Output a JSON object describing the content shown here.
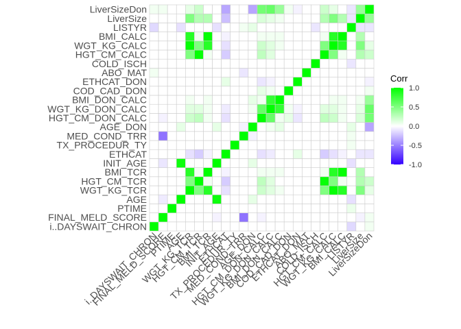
{
  "chart_data": {
    "type": "heatmap",
    "variables": [
      "i..DAYSWAIT_CHRON",
      "FINAL_MELD_SCORE",
      "PTIME",
      "AGE",
      "WGT_KG_TCR",
      "HGT_CM_TCR",
      "BMI_TCR",
      "INIT_AGE",
      "ETHCAT",
      "TX_PROCEDUR_TY",
      "MED_COND_TRR",
      "AGE_DON",
      "HGT_CM_DON_CALC",
      "WGT_KG_DON_CALC",
      "BMI_DON_CALC",
      "COD_CAD_DON",
      "ETHCAT_DON",
      "ABO_MAT",
      "COLD_ISCH",
      "HGT_CM_CALC",
      "WGT_KG_CALC",
      "BMI_CALC",
      "LISTYR",
      "LiverSize",
      "LiverSizeDon"
    ],
    "values": [
      [
        1.0,
        0.0,
        0.0,
        0.0,
        0.0,
        0.0,
        0.0,
        0.0,
        0.0,
        0.0,
        0.0,
        0.0,
        0.0,
        0.0,
        0.0,
        0.0,
        0.0,
        0.0,
        0.0,
        0.0,
        0.0,
        0.0,
        -0.15,
        0.0,
        0.05
      ],
      [
        0.0,
        1.0,
        0.0,
        0.0,
        0.0,
        0.0,
        0.0,
        -0.05,
        0.0,
        0.0,
        -0.55,
        0.0,
        -0.05,
        0.0,
        0.0,
        0.0,
        0.0,
        0.0,
        0.0,
        0.0,
        0.0,
        0.0,
        0.0,
        -0.05,
        0.05
      ],
      [
        0.0,
        0.0,
        1.0,
        0.0,
        0.0,
        0.0,
        0.0,
        0.0,
        0.0,
        0.0,
        0.0,
        0.0,
        0.0,
        0.0,
        0.0,
        0.0,
        0.0,
        0.0,
        0.0,
        0.0,
        0.0,
        0.0,
        0.08,
        0.0,
        0.0
      ],
      [
        0.0,
        -0.08,
        0.0,
        1.0,
        0.0,
        0.0,
        0.0,
        0.95,
        0.0,
        0.0,
        0.0,
        0.1,
        0.0,
        0.0,
        0.0,
        0.0,
        0.0,
        0.0,
        0.0,
        0.0,
        0.0,
        0.0,
        -0.12,
        0.0,
        0.0
      ],
      [
        0.0,
        0.0,
        0.0,
        0.0,
        1.0,
        0.5,
        0.85,
        0.0,
        -0.12,
        0.0,
        0.0,
        0.0,
        0.2,
        0.12,
        0.05,
        0.0,
        0.0,
        0.0,
        0.0,
        0.5,
        0.98,
        0.85,
        0.0,
        0.5,
        0.1
      ],
      [
        0.0,
        0.0,
        0.0,
        0.0,
        0.5,
        1.0,
        0.05,
        0.0,
        -0.2,
        0.0,
        0.0,
        0.0,
        0.25,
        0.12,
        0.0,
        0.0,
        0.0,
        0.0,
        0.0,
        0.98,
        0.5,
        0.05,
        0.0,
        0.3,
        0.2
      ],
      [
        0.0,
        0.0,
        0.0,
        0.0,
        0.85,
        0.05,
        1.0,
        0.0,
        -0.05,
        0.0,
        0.0,
        0.0,
        0.05,
        0.05,
        0.05,
        0.0,
        0.0,
        0.0,
        0.0,
        0.05,
        0.85,
        0.98,
        0.0,
        0.3,
        0.0
      ],
      [
        0.0,
        -0.1,
        0.0,
        0.95,
        0.0,
        0.0,
        0.0,
        1.0,
        0.0,
        0.0,
        0.0,
        0.1,
        0.0,
        0.0,
        0.0,
        0.0,
        0.0,
        0.0,
        0.0,
        0.0,
        0.0,
        0.0,
        -0.12,
        0.0,
        0.0
      ],
      [
        0.0,
        0.0,
        0.0,
        0.0,
        -0.12,
        -0.2,
        -0.05,
        0.0,
        1.0,
        0.0,
        0.0,
        0.0,
        -0.12,
        -0.08,
        0.0,
        0.0,
        0.1,
        0.0,
        0.0,
        -0.2,
        -0.12,
        -0.05,
        0.0,
        -0.1,
        -0.1
      ],
      [
        0.0,
        0.0,
        0.0,
        0.0,
        0.0,
        0.0,
        0.0,
        0.0,
        0.0,
        1.0,
        0.0,
        0.0,
        0.0,
        0.0,
        0.0,
        0.0,
        0.0,
        0.0,
        0.0,
        0.0,
        0.0,
        0.0,
        0.05,
        0.0,
        0.0
      ],
      [
        0.0,
        -0.55,
        0.0,
        0.0,
        0.0,
        0.0,
        0.0,
        0.0,
        0.0,
        0.0,
        1.0,
        -0.05,
        0.0,
        0.0,
        0.0,
        0.0,
        0.0,
        0.0,
        0.0,
        0.0,
        0.0,
        0.0,
        0.05,
        0.0,
        0.0
      ],
      [
        0.0,
        0.0,
        0.0,
        0.1,
        0.0,
        0.0,
        0.0,
        0.1,
        0.0,
        0.0,
        -0.05,
        1.0,
        0.0,
        0.05,
        0.1,
        0.0,
        0.0,
        0.0,
        0.0,
        0.0,
        0.0,
        0.0,
        0.1,
        0.0,
        -0.35
      ],
      [
        0.0,
        -0.05,
        0.0,
        0.0,
        0.2,
        0.25,
        0.05,
        0.0,
        -0.12,
        0.0,
        0.0,
        0.0,
        1.0,
        0.6,
        0.05,
        0.1,
        -0.1,
        0.0,
        0.0,
        0.25,
        0.2,
        0.05,
        0.0,
        0.15,
        0.55
      ],
      [
        0.0,
        0.0,
        0.0,
        0.0,
        0.12,
        0.12,
        0.05,
        0.0,
        -0.08,
        0.0,
        0.0,
        0.05,
        0.6,
        1.0,
        0.8,
        0.05,
        -0.05,
        0.0,
        0.0,
        0.12,
        0.12,
        0.05,
        0.0,
        0.1,
        0.6
      ],
      [
        0.0,
        0.0,
        0.0,
        0.0,
        0.05,
        0.0,
        0.05,
        0.0,
        0.0,
        0.0,
        0.0,
        0.1,
        0.05,
        0.8,
        1.0,
        0.0,
        0.0,
        0.0,
        0.0,
        0.0,
        0.05,
        0.05,
        0.0,
        0.05,
        0.4
      ],
      [
        0.0,
        0.0,
        0.0,
        0.0,
        0.0,
        0.0,
        0.0,
        0.0,
        0.0,
        0.0,
        0.0,
        0.0,
        0.1,
        0.05,
        0.0,
        1.0,
        0.0,
        0.0,
        0.0,
        0.0,
        0.0,
        0.0,
        0.0,
        0.0,
        0.05
      ],
      [
        0.0,
        0.0,
        0.0,
        0.0,
        0.0,
        0.0,
        0.0,
        0.0,
        0.1,
        0.0,
        0.0,
        0.0,
        -0.1,
        -0.05,
        0.0,
        0.0,
        1.0,
        0.0,
        0.0,
        0.0,
        0.0,
        0.0,
        0.0,
        0.0,
        -0.05
      ],
      [
        0.05,
        0.0,
        0.0,
        0.0,
        0.0,
        0.0,
        0.0,
        0.0,
        0.0,
        0.0,
        -0.1,
        0.0,
        0.0,
        0.0,
        0.0,
        0.0,
        0.0,
        1.0,
        0.0,
        0.0,
        0.0,
        0.0,
        0.0,
        0.0,
        0.0
      ],
      [
        0.0,
        0.0,
        0.0,
        0.0,
        0.0,
        0.0,
        0.0,
        0.0,
        0.0,
        0.0,
        0.0,
        0.0,
        0.0,
        0.0,
        0.0,
        0.0,
        0.0,
        0.0,
        1.0,
        0.0,
        0.0,
        0.0,
        -0.1,
        0.0,
        0.0
      ],
      [
        0.0,
        0.0,
        0.0,
        0.0,
        0.5,
        0.98,
        0.05,
        0.0,
        -0.2,
        0.0,
        0.0,
        0.0,
        0.25,
        0.12,
        0.0,
        0.0,
        0.0,
        0.0,
        0.0,
        1.0,
        0.5,
        0.05,
        0.0,
        0.3,
        0.2
      ],
      [
        0.0,
        0.0,
        0.0,
        0.0,
        0.98,
        0.5,
        0.85,
        0.0,
        -0.12,
        0.0,
        0.0,
        0.0,
        0.2,
        0.12,
        0.05,
        0.0,
        0.0,
        0.0,
        0.0,
        0.5,
        1.0,
        0.85,
        0.0,
        0.5,
        0.1
      ],
      [
        0.0,
        0.0,
        0.0,
        0.0,
        0.85,
        0.05,
        0.98,
        0.0,
        -0.05,
        0.0,
        0.0,
        0.0,
        0.05,
        0.05,
        0.05,
        0.0,
        0.0,
        0.0,
        0.0,
        0.05,
        0.85,
        1.0,
        0.0,
        0.3,
        0.0
      ],
      [
        -0.15,
        0.0,
        0.0,
        -0.12,
        0.0,
        0.0,
        0.0,
        -0.12,
        0.0,
        0.0,
        0.05,
        0.1,
        0.0,
        0.0,
        0.0,
        0.0,
        0.0,
        0.0,
        -0.1,
        0.0,
        0.0,
        0.0,
        1.0,
        -0.1,
        -0.1
      ],
      [
        0.0,
        0.0,
        0.0,
        0.0,
        0.5,
        0.3,
        0.3,
        0.0,
        -0.25,
        0.0,
        0.0,
        0.0,
        0.15,
        0.1,
        0.05,
        0.0,
        0.0,
        0.0,
        0.0,
        0.3,
        0.5,
        0.3,
        -0.1,
        1.0,
        0.4
      ],
      [
        0.05,
        0.05,
        0.0,
        0.0,
        0.1,
        0.2,
        0.0,
        0.0,
        -0.35,
        0.0,
        0.0,
        -0.35,
        0.55,
        0.6,
        0.4,
        0.05,
        -0.05,
        0.0,
        0.0,
        0.2,
        0.1,
        0.0,
        -0.1,
        0.4,
        1.0
      ]
    ],
    "color_scale": {
      "low": "#3300ff",
      "mid": "#ffffff",
      "high": "#00ff00",
      "limits": [
        -1,
        1
      ]
    },
    "legend": {
      "title": "Corr",
      "ticks": [
        1.0,
        0.5,
        0.0,
        -0.5,
        -1.0
      ],
      "tick_labels": [
        "1.0",
        "0.5",
        "0.0",
        "-0.5",
        "-1.0"
      ],
      "position": "right"
    },
    "grid_color": "#cccccc",
    "x_labels_rotation": -45
  }
}
